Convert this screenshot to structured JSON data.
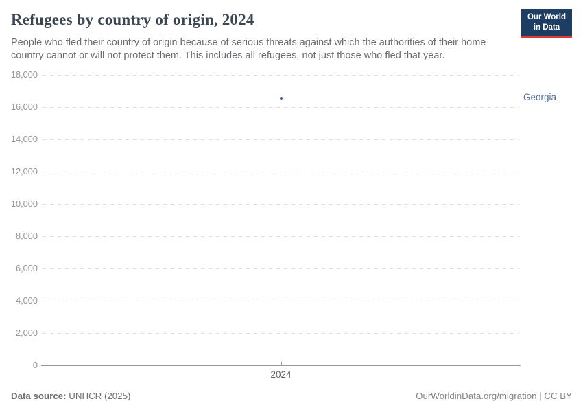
{
  "header": {
    "title": "Refugees by country of origin, 2024",
    "subtitle": "People who fled their country of origin because of serious threats against which the authorities of their home country cannot or will not protect them. This includes all refugees, not just those who fled that year.",
    "logo": {
      "line1": "Our World",
      "line2": "in Data"
    }
  },
  "chart_data": {
    "type": "scatter",
    "title": "Refugees by country of origin, 2024",
    "x": [
      2024
    ],
    "series": [
      {
        "name": "Georgia",
        "color": "#41598c",
        "values": [
          16550
        ]
      }
    ],
    "xlabel": "",
    "ylabel": "",
    "ylim": [
      0,
      18000
    ],
    "y_ticks": [
      {
        "value": 0,
        "label": "0"
      },
      {
        "value": 2000,
        "label": "2,000"
      },
      {
        "value": 4000,
        "label": "4,000"
      },
      {
        "value": 6000,
        "label": "6,000"
      },
      {
        "value": 8000,
        "label": "8,000"
      },
      {
        "value": 10000,
        "label": "10,000"
      },
      {
        "value": 12000,
        "label": "12,000"
      },
      {
        "value": 14000,
        "label": "14,000"
      },
      {
        "value": 16000,
        "label": "16,000"
      },
      {
        "value": 18000,
        "label": "18,000"
      }
    ],
    "x_tick_labels": [
      "2024"
    ],
    "grid": "horizontal-dashed",
    "legend_position": "entity-label-right"
  },
  "footer": {
    "datasource_label": "Data source:",
    "datasource_value": " UNHCR (2025)",
    "credit": "OurWorldinData.org/migration | CC BY"
  },
  "colors": {
    "series_georgia": "#41598c",
    "entity_label": "#55729e",
    "logo_navy": "#1d3d63",
    "logo_red": "#dc3a33",
    "gridline": "#dedede",
    "axis_line": "#9b9b9b"
  }
}
